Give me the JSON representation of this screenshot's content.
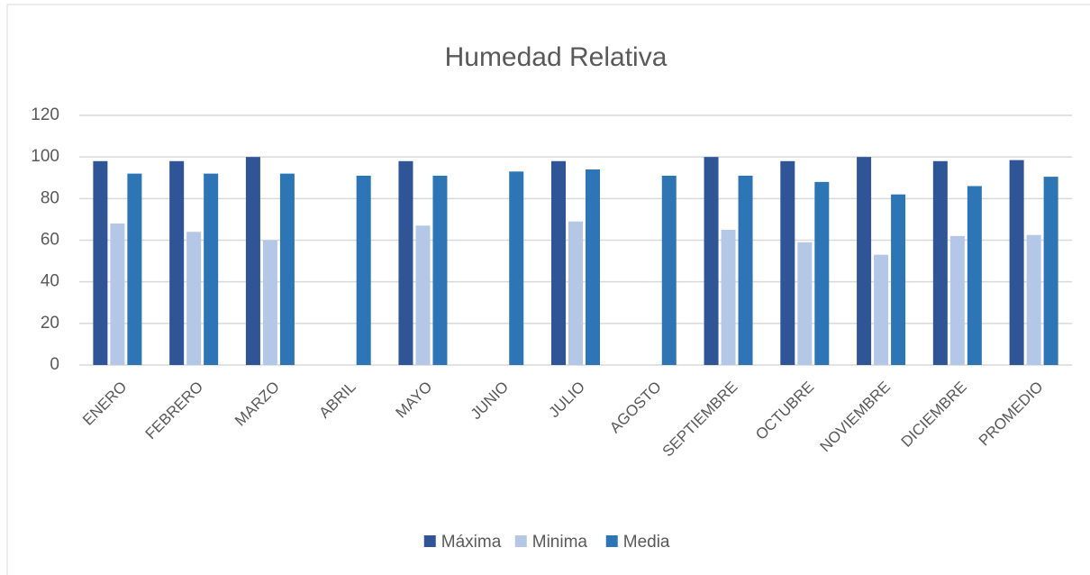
{
  "chart_data": {
    "type": "bar",
    "title": "Humedad Relativa",
    "categories": [
      "ENERO",
      "FEBRERO",
      "MARZO",
      "ABRIL",
      "MAYO",
      "JUNIO",
      "JULIO",
      "AGOSTO",
      "SEPTIEMBRE",
      "OCTUBRE",
      "NOVIEMBRE",
      "DICIEMBRE",
      "PROMEDIO"
    ],
    "series": [
      {
        "name": "Máxima",
        "color": "#2f5597",
        "values": [
          98,
          98,
          100,
          null,
          98,
          null,
          98,
          null,
          100,
          98,
          100,
          98,
          98.5
        ]
      },
      {
        "name": "Minima",
        "color": "#b4c7e7",
        "values": [
          68,
          64,
          60,
          null,
          67,
          null,
          69,
          null,
          65,
          59,
          53,
          62,
          62.5
        ]
      },
      {
        "name": "Media",
        "color": "#2e75b6",
        "values": [
          92,
          92,
          92,
          91,
          91,
          93,
          94,
          91,
          91,
          88,
          82,
          86,
          90.5
        ]
      }
    ],
    "ylim": [
      0,
      120
    ],
    "yticks": [
      0,
      20,
      40,
      60,
      80,
      100,
      120
    ],
    "grid": true,
    "legend": "bottom"
  }
}
